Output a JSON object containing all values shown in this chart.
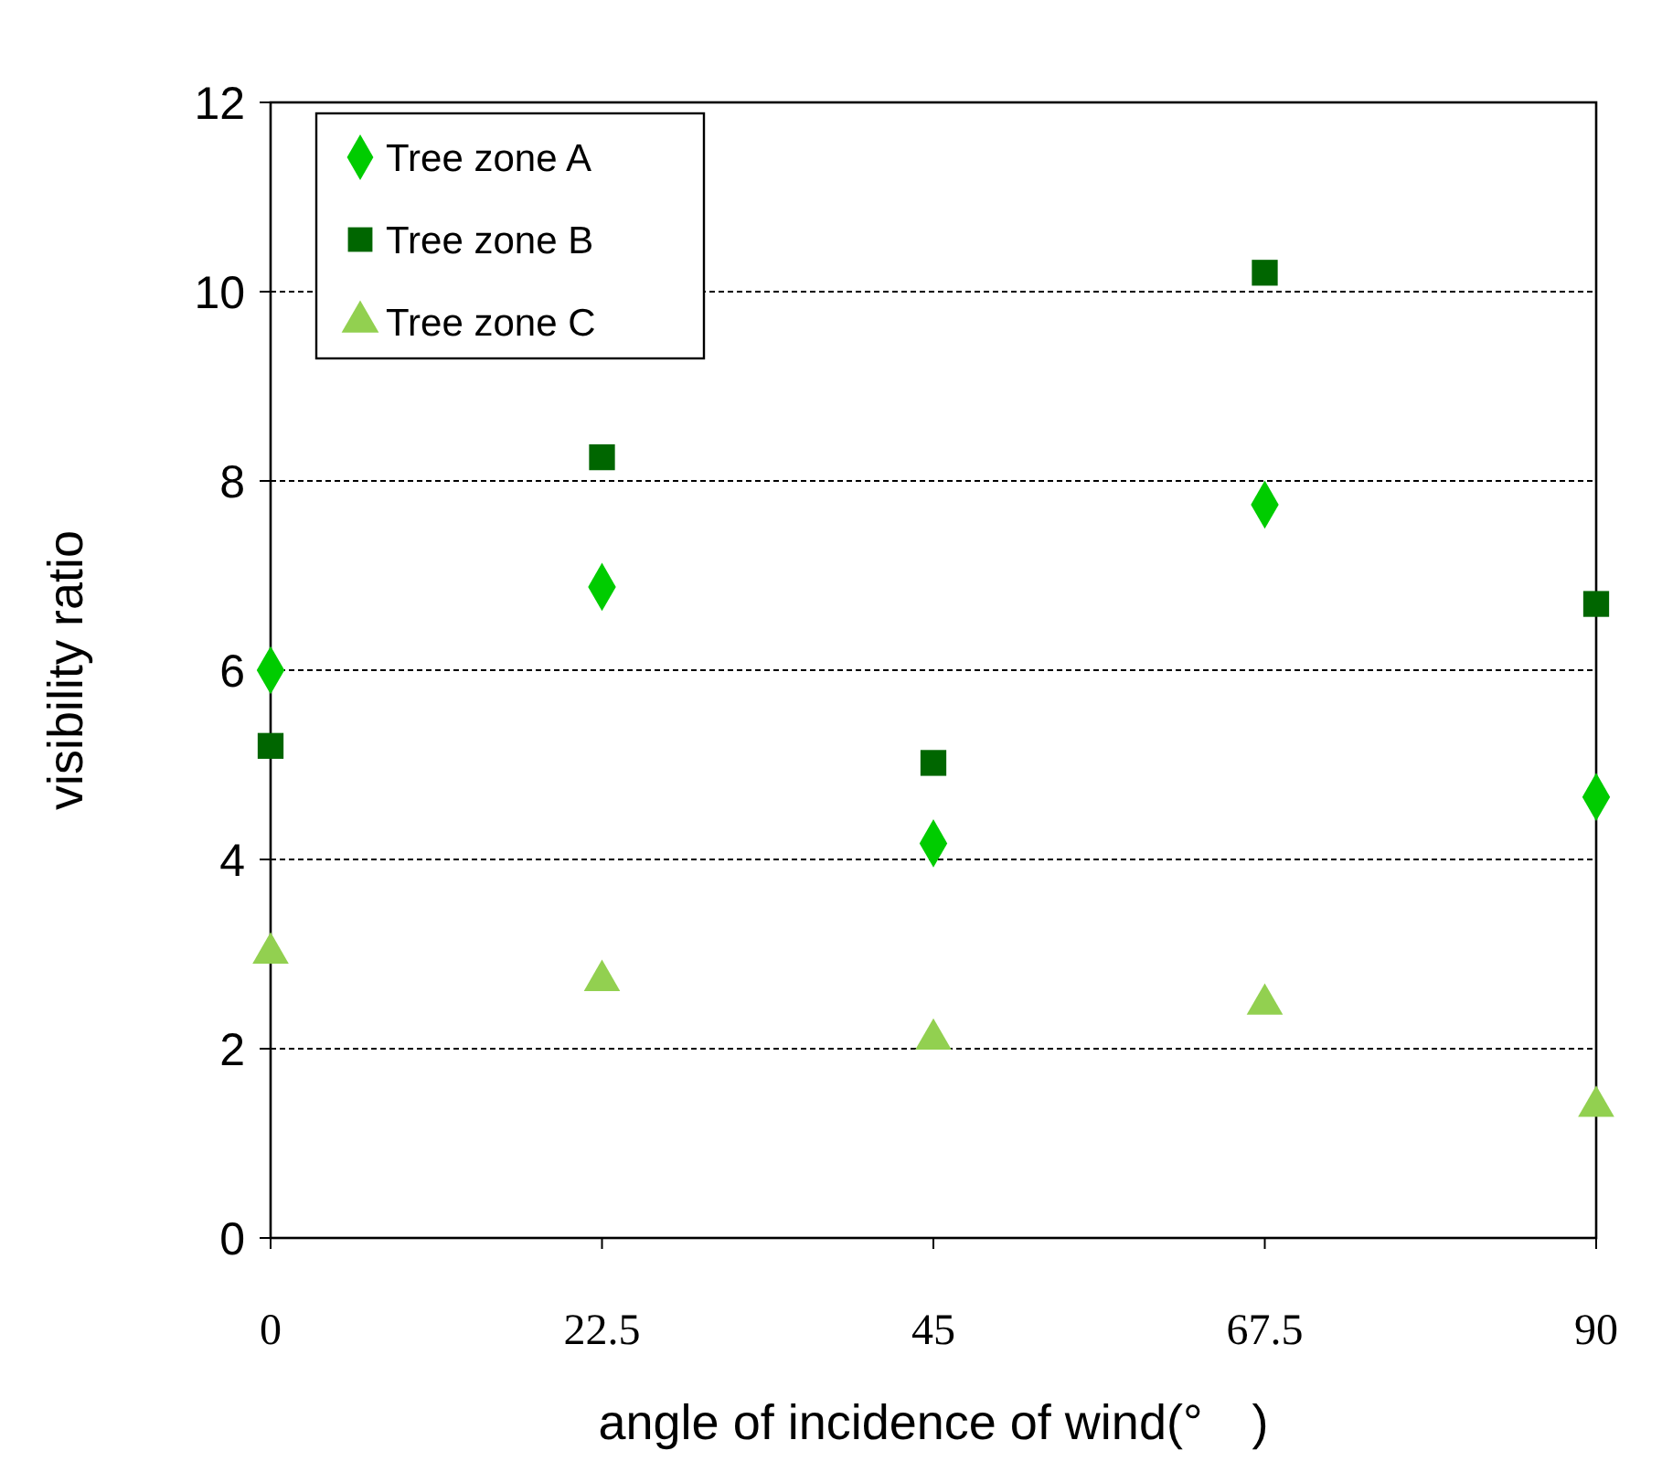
{
  "chart_data": {
    "type": "scatter",
    "xlabel": "angle of incidence of wind(°　)",
    "ylabel": "visibility ratio",
    "x": [
      0,
      22.5,
      45,
      67.5,
      90
    ],
    "series": [
      {
        "name": "Tree zone A",
        "color": "#00cc00",
        "marker": "diamond",
        "values": [
          6.0,
          6.88,
          4.17,
          7.75,
          4.66
        ]
      },
      {
        "name": "Tree zone B",
        "color": "#006600",
        "marker": "square",
        "values": [
          5.2,
          8.25,
          5.02,
          10.2,
          6.7
        ]
      },
      {
        "name": "Tree zone C",
        "color": "#92d050",
        "marker": "triangle",
        "values": [
          3.01,
          2.72,
          2.1,
          2.47,
          1.39
        ]
      }
    ],
    "xlim": [
      0,
      90
    ],
    "xticks": [
      0,
      22.5,
      45,
      67.5,
      90
    ],
    "ylim": [
      0,
      12
    ],
    "yticks": [
      0,
      2,
      4,
      6,
      8,
      10,
      12
    ],
    "grid": "y",
    "legend": "top left"
  }
}
